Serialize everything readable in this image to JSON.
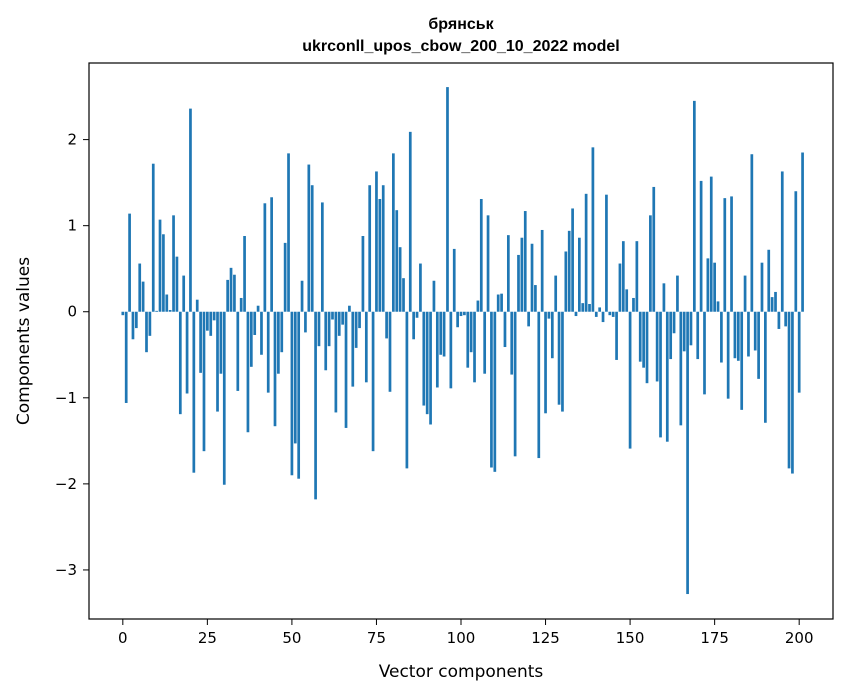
{
  "chart_data": {
    "type": "bar",
    "title": "брянськ",
    "subtitle": "ukrconll_upos_cbow_200_10_2022 model",
    "xlabel": "Vector components",
    "ylabel": "Components values",
    "xlim": [
      -10,
      210
    ],
    "ylim": [
      -3.57,
      2.89
    ],
    "xticks": [
      0,
      25,
      50,
      75,
      100,
      125,
      150,
      175,
      200
    ],
    "yticks": [
      -3,
      -2,
      -1,
      0,
      1,
      2
    ],
    "ytick_labels": [
      "−3",
      "−2",
      "−1",
      "0",
      "1",
      "2"
    ],
    "bar_color": "#1f77b4",
    "grid": false,
    "values": [
      -0.04,
      -1.06,
      1.14,
      -0.32,
      -0.19,
      0.56,
      0.35,
      -0.47,
      -0.28,
      1.72,
      0.01,
      1.07,
      0.9,
      0.2,
      0.02,
      1.12,
      0.64,
      -1.19,
      0.42,
      -0.95,
      2.36,
      -1.87,
      0.14,
      -0.71,
      -1.62,
      -0.22,
      -0.28,
      -0.1,
      -1.16,
      -0.72,
      -2.01,
      0.37,
      0.51,
      0.43,
      -0.92,
      0.16,
      0.88,
      -1.4,
      -0.64,
      -0.27,
      0.07,
      -0.5,
      1.26,
      -0.94,
      1.33,
      -1.33,
      -0.72,
      -0.47,
      0.8,
      1.84,
      -1.9,
      -1.53,
      -1.94,
      0.36,
      -0.24,
      1.71,
      1.47,
      -2.18,
      -0.4,
      1.27,
      -0.68,
      -0.4,
      -0.09,
      -1.17,
      -0.28,
      -0.15,
      -1.35,
      0.07,
      -0.87,
      -0.42,
      -0.19,
      0.88,
      -0.82,
      1.47,
      -1.62,
      1.63,
      1.31,
      1.47,
      -0.31,
      -0.93,
      1.84,
      1.18,
      0.75,
      0.39,
      -1.82,
      2.09,
      -0.32,
      -0.07,
      0.56,
      -1.09,
      -1.19,
      -1.31,
      0.36,
      -0.88,
      -0.5,
      -0.52,
      2.61,
      -0.89,
      0.73,
      -0.18,
      -0.05,
      -0.04,
      -0.65,
      -0.47,
      -0.82,
      0.13,
      1.31,
      -0.72,
      1.12,
      -1.81,
      -1.86,
      0.2,
      0.21,
      -0.41,
      0.89,
      -0.73,
      -1.68,
      0.66,
      0.86,
      1.17,
      -0.17,
      0.79,
      0.31,
      -1.7,
      0.95,
      -1.18,
      -0.08,
      -0.54,
      0.42,
      -1.08,
      -1.16,
      0.7,
      0.94,
      1.2,
      -0.05,
      0.86,
      0.1,
      1.37,
      0.09,
      1.91,
      -0.06,
      0.05,
      -0.12,
      1.36,
      -0.04,
      -0.06,
      -0.56,
      0.56,
      0.82,
      0.26,
      -1.59,
      0.16,
      0.82,
      -0.58,
      -0.65,
      -0.83,
      1.12,
      1.45,
      -0.81,
      -1.46,
      0.33,
      -1.51,
      -0.55,
      -0.25,
      0.42,
      -1.32,
      -0.46,
      -3.28,
      -0.39,
      2.45,
      -0.55,
      1.52,
      -0.96,
      0.62,
      1.57,
      0.57,
      0.12,
      -0.59,
      1.32,
      -1.01,
      1.34,
      -0.54,
      -0.57,
      -1.14,
      0.42,
      -0.52,
      1.83,
      -0.45,
      -0.78,
      0.57,
      -1.29,
      0.72,
      0.17,
      0.23,
      -0.2,
      1.63,
      -0.17,
      -1.82,
      -1.88,
      1.4,
      -0.94,
      1.85
    ]
  }
}
